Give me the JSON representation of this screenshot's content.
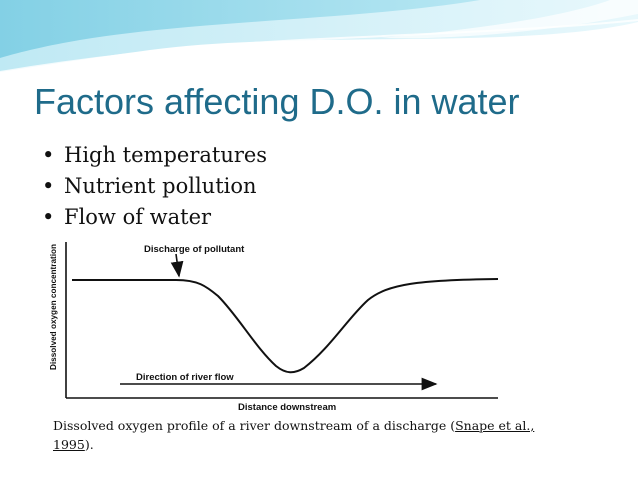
{
  "slide": {
    "title": "Factors affecting D.O. in water",
    "bullets": [
      "High temperatures",
      "Nutrient pollution",
      "Flow of water"
    ]
  },
  "figure": {
    "discharge_label": "Discharge of pollutant",
    "y_axis_label": "Dissolved oxygen concentration",
    "x_axis_label": "Distance downstream",
    "flow_label": "Direction of river flow"
  },
  "caption": {
    "text": "Dissolved oxygen profile of a river downstream of a discharge (",
    "reference": "Snape et al., 1995",
    "suffix": ")."
  },
  "colors": {
    "title": "#1f6b8a",
    "header_light": "#c9ecf5",
    "header_mid": "#7fd0e6"
  }
}
